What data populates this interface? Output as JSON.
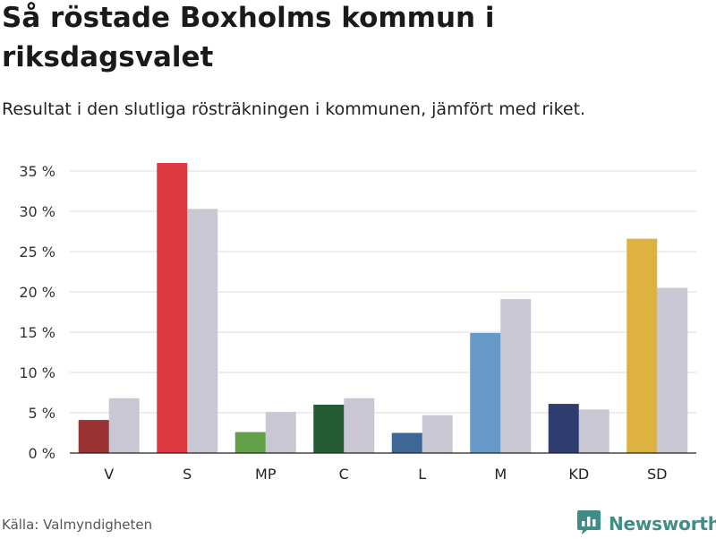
{
  "chart_data": {
    "type": "bar",
    "title": "Så röstade Boxholms kommun i riksdagsvalet",
    "subtitle": "Resultat i den slutliga rösträkningen i kommunen, jämfört med riket.",
    "categories": [
      "V",
      "S",
      "MP",
      "C",
      "L",
      "M",
      "KD",
      "SD"
    ],
    "series": [
      {
        "name": "Boxholms kommun",
        "values": [
          4.1,
          36.0,
          2.6,
          6.0,
          2.5,
          14.9,
          6.1,
          26.6
        ],
        "colors": [
          "#993333",
          "#dd3940",
          "#62a04a",
          "#245d34",
          "#3e6696",
          "#6699c8",
          "#2f3c70",
          "#ddb241"
        ]
      },
      {
        "name": "Riket",
        "values": [
          6.8,
          30.3,
          5.1,
          6.8,
          4.7,
          19.1,
          5.4,
          20.5
        ],
        "color": "#c9c7d4"
      }
    ],
    "yticks": [
      0,
      5,
      10,
      15,
      20,
      25,
      30,
      35
    ],
    "ytick_labels": [
      "0 %",
      "5 %",
      "10 %",
      "15 %",
      "20 %",
      "25 %",
      "30 %",
      "35 %"
    ],
    "ylim": [
      0,
      35
    ],
    "xlabel": "",
    "ylabel": "",
    "grid": true
  },
  "footer": {
    "source": "Källa: Valmyndigheten",
    "brand": "Newsworthy"
  },
  "colors": {
    "grid": "#dddddd",
    "axis": "#222222",
    "brand": "#3e8d86"
  },
  "icons": {
    "brand_logo": "bar-chart-speech-bubble-icon"
  }
}
